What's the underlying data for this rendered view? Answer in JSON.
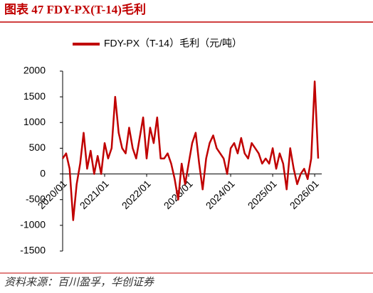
{
  "chart_data": {
    "type": "line",
    "title": "图表 47 FDY-PX(T-14)毛利",
    "source": "资料来源：百川盈孚，华创证券",
    "x": [
      "2020/01",
      "2020/02",
      "2020/03",
      "2020/04",
      "2020/05",
      "2020/06",
      "2020/07",
      "2020/08",
      "2020/09",
      "2020/10",
      "2020/11",
      "2020/12",
      "2021/01",
      "2021/02",
      "2021/03",
      "2021/04",
      "2021/05",
      "2021/06",
      "2021/07",
      "2021/08",
      "2021/09",
      "2021/10",
      "2021/11",
      "2021/12",
      "2022/01",
      "2022/02",
      "2022/03",
      "2022/04",
      "2022/05",
      "2022/06",
      "2022/07",
      "2022/08",
      "2022/09",
      "2022/10",
      "2022/11",
      "2022/12",
      "2023/01",
      "2023/02",
      "2023/03",
      "2023/04",
      "2023/05",
      "2023/06",
      "2023/07",
      "2023/08",
      "2023/09",
      "2023/10",
      "2023/11",
      "2023/12",
      "2024/01",
      "2024/02",
      "2024/03",
      "2024/04",
      "2024/05",
      "2024/06",
      "2024/07",
      "2024/08",
      "2024/09",
      "2024/10",
      "2024/11",
      "2024/12",
      "2025/01",
      "2025/02",
      "2025/03",
      "2025/04",
      "2025/05",
      "2025/06",
      "2025/07",
      "2025/08",
      "2025/09",
      "2025/10",
      "2025/11",
      "2025/12",
      "2026/01",
      "2026/02"
    ],
    "series": [
      {
        "name": "FDY-PX（T-14）毛利（元/吨）",
        "color": "#c00000",
        "values": [
          300,
          400,
          100,
          -900,
          -200,
          200,
          800,
          100,
          450,
          0,
          350,
          0,
          600,
          300,
          500,
          1500,
          800,
          500,
          400,
          900,
          500,
          300,
          700,
          1100,
          300,
          900,
          600,
          1100,
          300,
          300,
          400,
          200,
          -100,
          -500,
          200,
          -200,
          200,
          600,
          800,
          200,
          -300,
          300,
          600,
          750,
          500,
          400,
          300,
          0,
          500,
          600,
          400,
          700,
          400,
          300,
          600,
          500,
          400,
          200,
          300,
          200,
          500,
          100,
          400,
          200,
          -300,
          500,
          100,
          -200,
          0,
          100,
          -100,
          300,
          1800,
          300
        ]
      }
    ],
    "xticks": [
      "2020/01",
      "2021/01",
      "2022/01",
      "2023/01",
      "2024/01",
      "2025/01",
      "2026/01"
    ],
    "ylim": [
      -1500,
      2000
    ],
    "yticks": [
      -1500,
      -1000,
      -500,
      0,
      500,
      1000,
      1500,
      2000
    ],
    "grid": false
  }
}
